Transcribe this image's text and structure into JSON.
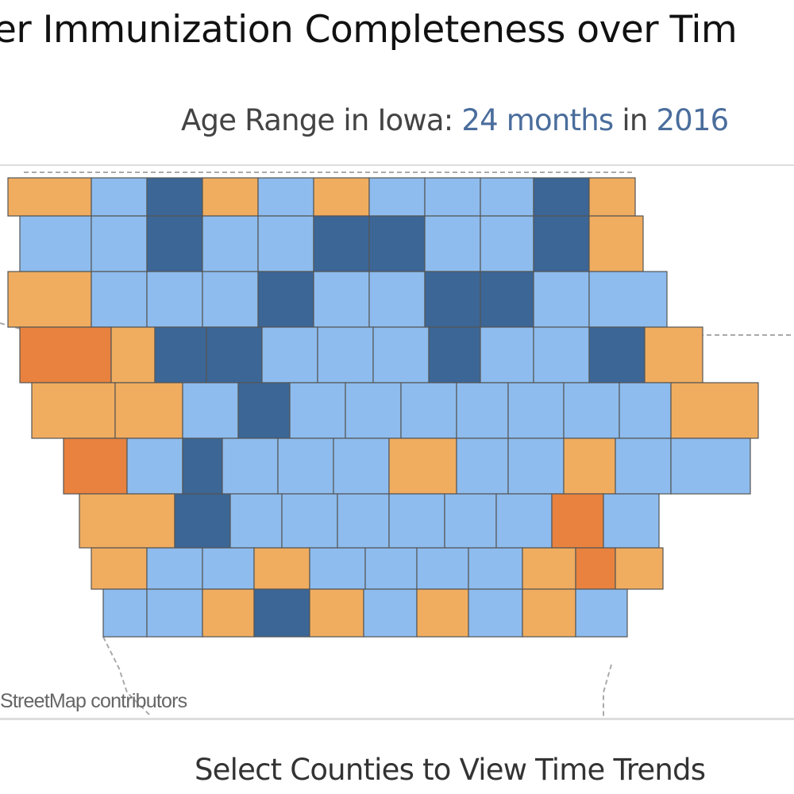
{
  "header": {
    "title": "er Immunization Completeness over Tim",
    "subtitle_prefix": "Age Range in Iowa: ",
    "age_range": "24 months",
    "subtitle_mid": " in ",
    "year": "2016"
  },
  "map": {
    "attribution": "StreetMap contributors",
    "colors": {
      "O": "#f0ad60",
      "X": "#e8823e",
      "L": "#8ebcee",
      "D": "#3b6696"
    },
    "legend_categories": {
      "O": "orange",
      "X": "dark-orange",
      "L": "light-blue",
      "D": "dark-blue"
    },
    "county_rows": [
      [
        "O",
        "L",
        "D",
        "O",
        "L",
        "O",
        "L",
        "L",
        "L",
        "D",
        "O"
      ],
      [
        "L",
        "L",
        "D",
        "L",
        "L",
        "D",
        "D",
        "L",
        "L",
        "D",
        "O"
      ],
      [
        "O",
        "L",
        "L",
        "L",
        "D",
        "L",
        "L",
        "D",
        "D",
        "L",
        "L"
      ],
      [
        "X",
        "O",
        "D",
        "D",
        "L",
        "L",
        "L",
        "D",
        "L",
        "L",
        "D",
        "O"
      ],
      [
        "O",
        "O",
        "L",
        "D",
        "L",
        "L",
        "L",
        "L",
        "L",
        "L",
        "L",
        "O"
      ],
      [
        "X",
        "L",
        "D",
        "L",
        "L",
        "L",
        "O",
        "L",
        "L",
        "O",
        "L",
        "L"
      ],
      [
        "O",
        "D",
        "L",
        "L",
        "L",
        "L",
        "L",
        "L",
        "X",
        "L"
      ],
      [
        "O",
        "L",
        "L",
        "O",
        "L",
        "L",
        "L",
        "L",
        "O",
        "X",
        "O"
      ],
      [
        "L",
        "L",
        "O",
        "D",
        "O",
        "L",
        "O",
        "L",
        "O",
        "L"
      ]
    ]
  },
  "footer": {
    "text": "Select Counties to View Time Trends"
  }
}
